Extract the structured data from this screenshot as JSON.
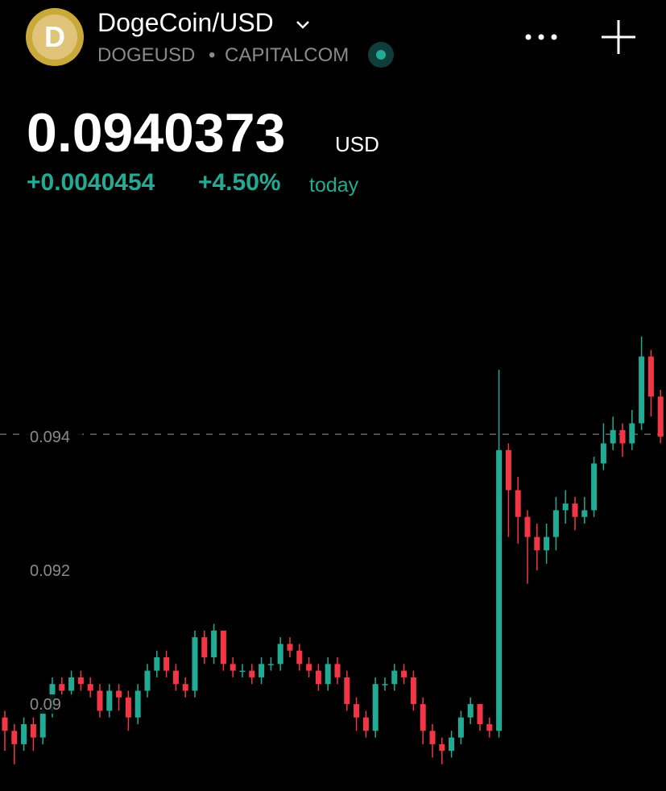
{
  "header": {
    "title": "DogeCoin/USD",
    "symbol": "DOGEUSD",
    "separator": "•",
    "exchange": "CAPITALCOM",
    "price": "0.0940373",
    "currency": "USD",
    "change": "+0.0040454",
    "change_percent": "+4.50%",
    "period": "today"
  },
  "chart_data": {
    "type": "candlestick",
    "up_color": "#22ab94",
    "down_color": "#f23645",
    "ylim": [
      0.0887,
      0.0974
    ],
    "yticks": [
      0.094,
      0.092,
      0.09
    ],
    "open": [
      0.0898,
      0.0896,
      0.0894,
      0.0897,
      0.0895,
      0.0899,
      0.0903,
      0.0902,
      0.0904,
      0.0903,
      0.0902,
      0.0899,
      0.0902,
      0.0901,
      0.0898,
      0.0902,
      0.0905,
      0.0907,
      0.0905,
      0.0903,
      0.0902,
      0.091,
      0.0907,
      0.0911,
      0.0906,
      0.0905,
      0.0905,
      0.0904,
      0.0906,
      0.0906,
      0.0909,
      0.0908,
      0.0906,
      0.0905,
      0.0903,
      0.0906,
      0.0904,
      0.09,
      0.0898,
      0.0896,
      0.0903,
      0.0903,
      0.0905,
      0.0904,
      0.09,
      0.0896,
      0.0894,
      0.0893,
      0.0895,
      0.0898,
      0.09,
      0.0897,
      0.0896,
      0.0938,
      0.0932,
      0.0928,
      0.0925,
      0.0923,
      0.0925,
      0.0929,
      0.093,
      0.0928,
      0.0929,
      0.0936,
      0.0939,
      0.0941,
      0.0939,
      0.0942,
      0.0952,
      0.0946
    ],
    "high": [
      0.0899,
      0.0897,
      0.0898,
      0.0898,
      0.09,
      0.0904,
      0.0904,
      0.0905,
      0.0905,
      0.0904,
      0.0903,
      0.0903,
      0.0903,
      0.0902,
      0.0903,
      0.0906,
      0.0908,
      0.0908,
      0.0906,
      0.0904,
      0.0911,
      0.0911,
      0.0912,
      0.0911,
      0.0907,
      0.0906,
      0.0906,
      0.0907,
      0.0907,
      0.091,
      0.091,
      0.0909,
      0.0907,
      0.0906,
      0.0907,
      0.0907,
      0.0905,
      0.0901,
      0.0899,
      0.0904,
      0.0904,
      0.0906,
      0.0906,
      0.0905,
      0.0901,
      0.0897,
      0.0895,
      0.0896,
      0.0899,
      0.0901,
      0.09,
      0.0898,
      0.095,
      0.0939,
      0.0934,
      0.0929,
      0.0927,
      0.0927,
      0.0931,
      0.0932,
      0.0931,
      0.0931,
      0.0937,
      0.0942,
      0.0943,
      0.0942,
      0.0944,
      0.0955,
      0.0953,
      0.0947
    ],
    "low": [
      0.0893,
      0.0891,
      0.0893,
      0.0893,
      0.0894,
      0.0898,
      0.0901,
      0.0901,
      0.0902,
      0.0901,
      0.0898,
      0.0898,
      0.0899,
      0.0896,
      0.0897,
      0.0901,
      0.0904,
      0.0904,
      0.0902,
      0.0901,
      0.0901,
      0.0906,
      0.0906,
      0.0905,
      0.0904,
      0.0904,
      0.0903,
      0.0903,
      0.0905,
      0.0905,
      0.0907,
      0.0905,
      0.0904,
      0.0902,
      0.0902,
      0.0903,
      0.0899,
      0.0896,
      0.0895,
      0.0895,
      0.0902,
      0.0902,
      0.0903,
      0.0899,
      0.0894,
      0.0892,
      0.0891,
      0.0892,
      0.0894,
      0.0897,
      0.0896,
      0.0895,
      0.0895,
      0.0925,
      0.0924,
      0.0918,
      0.092,
      0.0921,
      0.0923,
      0.0927,
      0.0926,
      0.0927,
      0.0928,
      0.0935,
      0.0938,
      0.0937,
      0.0938,
      0.0941,
      0.0943,
      0.0939
    ],
    "close": [
      0.0896,
      0.0894,
      0.0897,
      0.0895,
      0.0899,
      0.0903,
      0.0902,
      0.0904,
      0.0903,
      0.0902,
      0.0899,
      0.0902,
      0.0901,
      0.0898,
      0.0902,
      0.0905,
      0.0907,
      0.0905,
      0.0903,
      0.0902,
      0.091,
      0.0907,
      0.0911,
      0.0906,
      0.0905,
      0.0905,
      0.0904,
      0.0906,
      0.0906,
      0.0909,
      0.0908,
      0.0906,
      0.0905,
      0.0903,
      0.0906,
      0.0904,
      0.09,
      0.0898,
      0.0896,
      0.0903,
      0.0903,
      0.0905,
      0.0904,
      0.09,
      0.0896,
      0.0894,
      0.0893,
      0.0895,
      0.0898,
      0.09,
      0.0897,
      0.0896,
      0.0938,
      0.0932,
      0.0928,
      0.0925,
      0.0923,
      0.0925,
      0.0929,
      0.093,
      0.0928,
      0.0929,
      0.0936,
      0.0939,
      0.0941,
      0.0939,
      0.0942,
      0.0952,
      0.0946,
      0.094
    ]
  }
}
